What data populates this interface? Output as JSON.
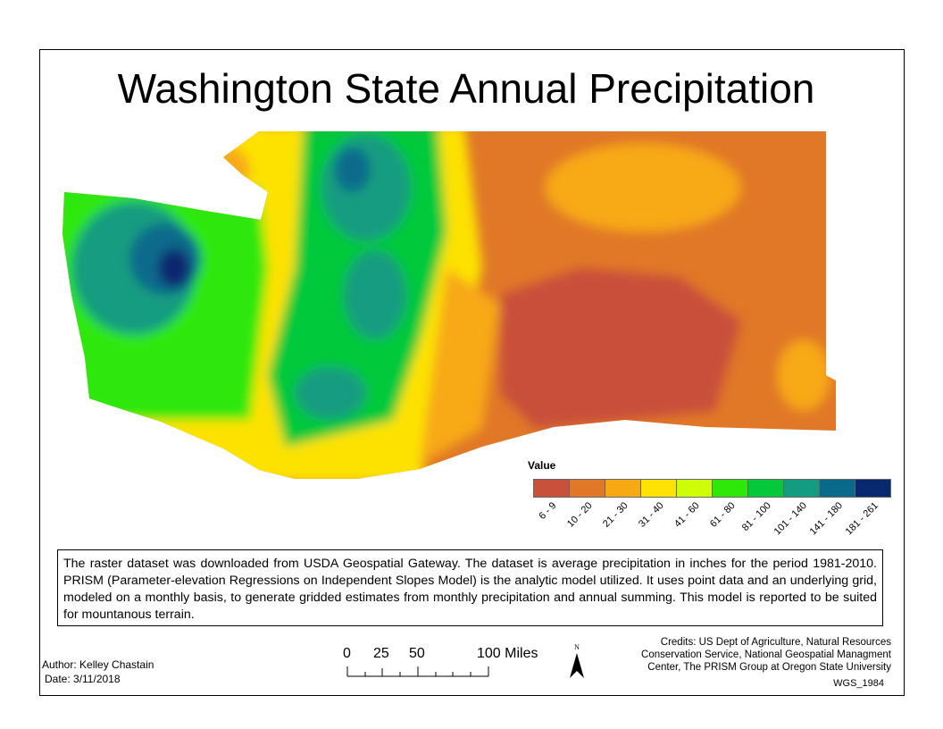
{
  "title": "Washington State Annual Precipitation",
  "legend": {
    "title": "Value",
    "classes": [
      {
        "label": "6 - 9",
        "color": "#c9503a"
      },
      {
        "label": "10 - 20",
        "color": "#e07828"
      },
      {
        "label": "21 - 30",
        "color": "#f7a914"
      },
      {
        "label": "31 - 40",
        "color": "#fde204"
      },
      {
        "label": "41 - 60",
        "color": "#cdfd07"
      },
      {
        "label": "61 - 80",
        "color": "#2ee80a"
      },
      {
        "label": "81 - 100",
        "color": "#05c93a"
      },
      {
        "label": "101 - 140",
        "color": "#149c80"
      },
      {
        "label": "141 - 180",
        "color": "#0a6a8c"
      },
      {
        "label": "181 - 261",
        "color": "#082870"
      }
    ]
  },
  "description": "The raster dataset was downloaded from USDA Geospatial Gateway. The dataset is average precipitation in inches for the period 1981-2010. PRISM (Parameter-elevation Regressions on Independent Slopes Model) is the analytic model utilized.  It uses point data and an underlying grid, modeled on a monthly basis, to generate gridded estimates from monthly precipitation and annual summing. This model is reported to be suited for mountanous terrain.",
  "author": "Author: Kelley Chastain",
  "date": "Date: 3/11/2018",
  "scale_bar": {
    "labels": [
      "0",
      "25",
      "50",
      "100 Miles"
    ]
  },
  "north_arrow": {
    "label": "N",
    "icon": "north-arrow-icon"
  },
  "credits": [
    "Credits: US Dept of Agriculture, Natural Resources",
    "Conservation Service, National Geospatial Managment",
    "Center, The PRISM Group at Oregon State University"
  ],
  "projection": "WGS_1984"
}
